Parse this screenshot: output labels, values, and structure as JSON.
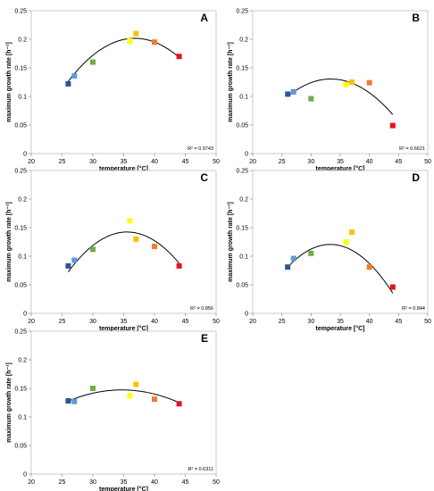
{
  "chart_data": [
    {
      "type": "scatter",
      "panel": "A",
      "xlabel": "temperature [°C]",
      "ylabel": "maximum growth rate [h⁻¹]",
      "xlim": [
        20,
        50
      ],
      "ylim": [
        0,
        0.25
      ],
      "xticks": [
        "20",
        "25",
        "30",
        "35",
        "40",
        "45",
        "50"
      ],
      "yticks": [
        "0",
        "0.05",
        "0.1",
        "0.15",
        "0.2",
        "0.25"
      ],
      "points": [
        {
          "x": 26,
          "y": 0.122,
          "color": "#2e5597"
        },
        {
          "x": 27,
          "y": 0.136,
          "color": "#5b9bd5"
        },
        {
          "x": 30,
          "y": 0.16,
          "color": "#70ad47"
        },
        {
          "x": 36,
          "y": 0.197,
          "color": "#ffff00"
        },
        {
          "x": 37,
          "y": 0.21,
          "color": "#ffc000"
        },
        {
          "x": 40,
          "y": 0.195,
          "color": "#ed7d31"
        },
        {
          "x": 44,
          "y": 0.17,
          "color": "#e3141b"
        }
      ],
      "trendline": {
        "type": "poly2",
        "x_range": [
          26,
          44
        ],
        "coef": [
          -0.000645,
          0.04747,
          -0.6717
        ]
      },
      "r2": "R² = 0.9743"
    },
    {
      "type": "scatter",
      "panel": "B",
      "xlabel": "temperature [°C]",
      "ylabel": "maximum growth rate [h⁻¹]",
      "xlim": [
        20,
        50
      ],
      "ylim": [
        0,
        0.25
      ],
      "xticks": [
        "20",
        "25",
        "30",
        "35",
        "40",
        "45",
        "50"
      ],
      "yticks": [
        "0",
        "0.05",
        "0.1",
        "0.15",
        "0.2",
        "0.25"
      ],
      "points": [
        {
          "x": 26,
          "y": 0.104,
          "color": "#2e5597"
        },
        {
          "x": 27,
          "y": 0.108,
          "color": "#5b9bd5"
        },
        {
          "x": 30,
          "y": 0.096,
          "color": "#70ad47"
        },
        {
          "x": 36,
          "y": 0.121,
          "color": "#ffff00"
        },
        {
          "x": 37,
          "y": 0.125,
          "color": "#ffc000"
        },
        {
          "x": 40,
          "y": 0.124,
          "color": "#ed7d31"
        },
        {
          "x": 44,
          "y": 0.049,
          "color": "#e3141b"
        }
      ],
      "trendline": {
        "type": "poly2",
        "x_range": [
          26,
          44
        ],
        "coef": [
          -0.000553,
          0.03693,
          -0.4861
        ]
      },
      "r2": "R² = 0.6621"
    },
    {
      "type": "scatter",
      "panel": "C",
      "xlabel": "temperature [°C]",
      "ylabel": "maximum growth rate [h⁻¹]",
      "xlim": [
        20,
        50
      ],
      "ylim": [
        0,
        0.25
      ],
      "xticks": [
        "20",
        "25",
        "30",
        "35",
        "40",
        "45",
        "50"
      ],
      "yticks": [
        "0",
        "0.05",
        "0.1",
        "0.15",
        "0.2",
        "0.25"
      ],
      "points": [
        {
          "x": 26,
          "y": 0.083,
          "color": "#2e5597"
        },
        {
          "x": 27,
          "y": 0.093,
          "color": "#5b9bd5"
        },
        {
          "x": 30,
          "y": 0.112,
          "color": "#70ad47"
        },
        {
          "x": 36,
          "y": 0.162,
          "color": "#ffff00"
        },
        {
          "x": 37,
          "y": 0.13,
          "color": "#ffc000"
        },
        {
          "x": 40,
          "y": 0.117,
          "color": "#ed7d31"
        },
        {
          "x": 44,
          "y": 0.083,
          "color": "#e3141b"
        }
      ],
      "trendline": {
        "type": "poly2",
        "x_range": [
          26,
          44
        ],
        "coef": [
          -0.000766,
          0.05446,
          -0.8256
        ]
      },
      "r2": "R² = 0.856"
    },
    {
      "type": "scatter",
      "panel": "D",
      "xlabel": "temperature [°C]",
      "ylabel": "maximum growth rate [h⁻¹]",
      "xlim": [
        20,
        50
      ],
      "ylim": [
        0,
        0.25
      ],
      "xticks": [
        "20",
        "25",
        "30",
        "35",
        "40",
        "45",
        "50"
      ],
      "yticks": [
        "0",
        "0.05",
        "0.1",
        "0.15",
        "0.2",
        "0.25"
      ],
      "points": [
        {
          "x": 26,
          "y": 0.081,
          "color": "#2e5597"
        },
        {
          "x": 27,
          "y": 0.096,
          "color": "#5b9bd5"
        },
        {
          "x": 30,
          "y": 0.105,
          "color": "#70ad47"
        },
        {
          "x": 36,
          "y": 0.125,
          "color": "#ffff00"
        },
        {
          "x": 37,
          "y": 0.142,
          "color": "#ffc000"
        },
        {
          "x": 40,
          "y": 0.081,
          "color": "#ed7d31"
        },
        {
          "x": 44,
          "y": 0.046,
          "color": "#e3141b"
        }
      ],
      "trendline": {
        "type": "poly2",
        "x_range": [
          26,
          44
        ],
        "coef": [
          -0.000744,
          0.04955,
          -0.7044
        ]
      },
      "r2": "R² = 0.844"
    },
    {
      "type": "scatter",
      "panel": "E",
      "xlabel": "temperature [°C]",
      "ylabel": "maximum growth rate [h⁻¹]",
      "xlim": [
        20,
        50
      ],
      "ylim": [
        0,
        0.25
      ],
      "xticks": [
        "20",
        "25",
        "30",
        "35",
        "40",
        "45",
        "50"
      ],
      "yticks": [
        "0",
        "0.05",
        "0.1",
        "0.15",
        "0.2",
        "0.25"
      ],
      "points": [
        {
          "x": 26,
          "y": 0.128,
          "color": "#2e5597"
        },
        {
          "x": 27,
          "y": 0.127,
          "color": "#5b9bd5"
        },
        {
          "x": 30,
          "y": 0.15,
          "color": "#70ad47"
        },
        {
          "x": 36,
          "y": 0.137,
          "color": "#ffff00"
        },
        {
          "x": 37,
          "y": 0.157,
          "color": "#ffc000"
        },
        {
          "x": 40,
          "y": 0.131,
          "color": "#ed7d31"
        },
        {
          "x": 44,
          "y": 0.123,
          "color": "#e3141b"
        }
      ],
      "trendline": {
        "type": "poly2",
        "x_range": [
          26,
          44
        ],
        "coef": [
          -0.000258,
          0.01791,
          -0.1636
        ]
      },
      "r2": "R² = 0.6311"
    }
  ]
}
